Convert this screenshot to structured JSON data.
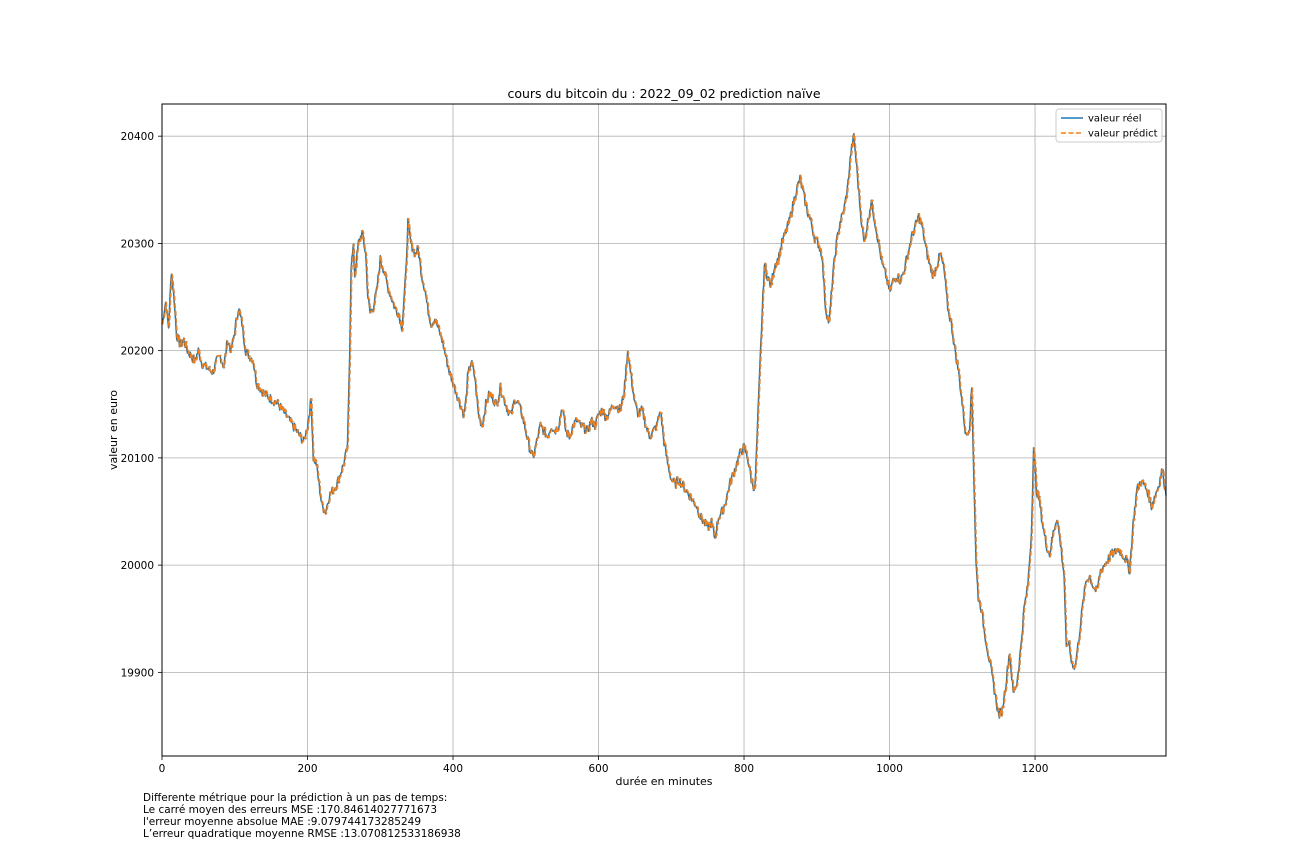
{
  "chart_data": {
    "type": "line",
    "title": "cours du bitcoin du : 2022_09_02 prediction naïve",
    "xlabel": "durée en minutes",
    "ylabel": "valeur en euro",
    "xlim": [
      0,
      1380
    ],
    "ylim": [
      19822,
      20430
    ],
    "x_ticks": [
      0,
      200,
      400,
      600,
      800,
      1000,
      1200
    ],
    "y_ticks": [
      19900,
      20000,
      20100,
      20200,
      20300,
      20400
    ],
    "grid": true,
    "legend_position": "top-right",
    "colors": {
      "real": "#1f77b4",
      "pred": "#ff7f0e"
    },
    "series": [
      {
        "name": "valeur réel",
        "style": "solid",
        "points": [
          [
            0,
            20225
          ],
          [
            5,
            20245
          ],
          [
            9,
            20222
          ],
          [
            13,
            20275
          ],
          [
            17,
            20245
          ],
          [
            20,
            20215
          ],
          [
            25,
            20205
          ],
          [
            30,
            20210
          ],
          [
            35,
            20200
          ],
          [
            40,
            20195
          ],
          [
            45,
            20190
          ],
          [
            50,
            20200
          ],
          [
            55,
            20188
          ],
          [
            60,
            20185
          ],
          [
            65,
            20182
          ],
          [
            70,
            20180
          ],
          [
            75,
            20190
          ],
          [
            80,
            20195
          ],
          [
            85,
            20185
          ],
          [
            90,
            20210
          ],
          [
            95,
            20200
          ],
          [
            100,
            20218
          ],
          [
            105,
            20240
          ],
          [
            110,
            20225
          ],
          [
            115,
            20200
          ],
          [
            120,
            20195
          ],
          [
            125,
            20192
          ],
          [
            130,
            20170
          ],
          [
            135,
            20165
          ],
          [
            140,
            20160
          ],
          [
            150,
            20155
          ],
          [
            160,
            20150
          ],
          [
            170,
            20140
          ],
          [
            180,
            20130
          ],
          [
            190,
            20120
          ],
          [
            195,
            20115
          ],
          [
            200,
            20130
          ],
          [
            205,
            20155
          ],
          [
            208,
            20100
          ],
          [
            212,
            20095
          ],
          [
            215,
            20080
          ],
          [
            220,
            20055
          ],
          [
            225,
            20050
          ],
          [
            230,
            20065
          ],
          [
            240,
            20075
          ],
          [
            245,
            20085
          ],
          [
            250,
            20095
          ],
          [
            255,
            20110
          ],
          [
            258,
            20200
          ],
          [
            260,
            20280
          ],
          [
            263,
            20295
          ],
          [
            265,
            20270
          ],
          [
            270,
            20300
          ],
          [
            275,
            20310
          ],
          [
            280,
            20290
          ],
          [
            283,
            20250
          ],
          [
            286,
            20235
          ],
          [
            290,
            20240
          ],
          [
            295,
            20255
          ],
          [
            300,
            20285
          ],
          [
            305,
            20275
          ],
          [
            310,
            20260
          ],
          [
            315,
            20250
          ],
          [
            320,
            20240
          ],
          [
            325,
            20235
          ],
          [
            330,
            20222
          ],
          [
            335,
            20270
          ],
          [
            338,
            20320
          ],
          [
            342,
            20300
          ],
          [
            348,
            20290
          ],
          [
            352,
            20295
          ],
          [
            357,
            20270
          ],
          [
            362,
            20255
          ],
          [
            365,
            20240
          ],
          [
            370,
            20225
          ],
          [
            375,
            20230
          ],
          [
            380,
            20220
          ],
          [
            385,
            20210
          ],
          [
            390,
            20195
          ],
          [
            395,
            20180
          ],
          [
            400,
            20170
          ],
          [
            405,
            20160
          ],
          [
            410,
            20150
          ],
          [
            415,
            20140
          ],
          [
            418,
            20155
          ],
          [
            420,
            20175
          ],
          [
            425,
            20190
          ],
          [
            430,
            20175
          ],
          [
            435,
            20140
          ],
          [
            440,
            20130
          ],
          [
            445,
            20150
          ],
          [
            450,
            20160
          ],
          [
            455,
            20155
          ],
          [
            460,
            20150
          ],
          [
            465,
            20165
          ],
          [
            470,
            20155
          ],
          [
            475,
            20145
          ],
          [
            480,
            20140
          ],
          [
            485,
            20155
          ],
          [
            490,
            20150
          ],
          [
            495,
            20140
          ],
          [
            500,
            20125
          ],
          [
            505,
            20110
          ],
          [
            510,
            20100
          ],
          [
            515,
            20115
          ],
          [
            520,
            20130
          ],
          [
            525,
            20125
          ],
          [
            530,
            20120
          ],
          [
            535,
            20130
          ],
          [
            540,
            20125
          ],
          [
            545,
            20130
          ],
          [
            550,
            20148
          ],
          [
            555,
            20125
          ],
          [
            560,
            20120
          ],
          [
            565,
            20130
          ],
          [
            570,
            20135
          ],
          [
            575,
            20130
          ],
          [
            580,
            20128
          ],
          [
            585,
            20125
          ],
          [
            590,
            20135
          ],
          [
            595,
            20130
          ],
          [
            600,
            20140
          ],
          [
            605,
            20145
          ],
          [
            610,
            20138
          ],
          [
            615,
            20142
          ],
          [
            620,
            20150
          ],
          [
            625,
            20148
          ],
          [
            630,
            20145
          ],
          [
            635,
            20160
          ],
          [
            640,
            20200
          ],
          [
            643,
            20185
          ],
          [
            647,
            20165
          ],
          [
            650,
            20150
          ],
          [
            655,
            20140
          ],
          [
            660,
            20145
          ],
          [
            665,
            20130
          ],
          [
            670,
            20120
          ],
          [
            675,
            20125
          ],
          [
            680,
            20130
          ],
          [
            685,
            20145
          ],
          [
            690,
            20115
          ],
          [
            695,
            20095
          ],
          [
            700,
            20080
          ],
          [
            705,
            20075
          ],
          [
            710,
            20080
          ],
          [
            715,
            20075
          ],
          [
            720,
            20070
          ],
          [
            725,
            20065
          ],
          [
            730,
            20060
          ],
          [
            735,
            20055
          ],
          [
            740,
            20045
          ],
          [
            745,
            20040
          ],
          [
            750,
            20035
          ],
          [
            755,
            20040
          ],
          [
            760,
            20025
          ],
          [
            765,
            20045
          ],
          [
            770,
            20050
          ],
          [
            775,
            20060
          ],
          [
            780,
            20075
          ],
          [
            785,
            20085
          ],
          [
            790,
            20095
          ],
          [
            795,
            20105
          ],
          [
            800,
            20110
          ],
          [
            805,
            20100
          ],
          [
            810,
            20080
          ],
          [
            815,
            20070
          ],
          [
            818,
            20120
          ],
          [
            821,
            20170
          ],
          [
            824,
            20220
          ],
          [
            828,
            20280
          ],
          [
            832,
            20270
          ],
          [
            837,
            20260
          ],
          [
            842,
            20280
          ],
          [
            847,
            20285
          ],
          [
            852,
            20300
          ],
          [
            857,
            20310
          ],
          [
            862,
            20320
          ],
          [
            867,
            20335
          ],
          [
            872,
            20350
          ],
          [
            877,
            20360
          ],
          [
            882,
            20345
          ],
          [
            887,
            20330
          ],
          [
            892,
            20320
          ],
          [
            897,
            20305
          ],
          [
            902,
            20300
          ],
          [
            907,
            20290
          ],
          [
            912,
            20240
          ],
          [
            917,
            20225
          ],
          [
            922,
            20270
          ],
          [
            927,
            20300
          ],
          [
            932,
            20320
          ],
          [
            937,
            20330
          ],
          [
            942,
            20350
          ],
          [
            947,
            20385
          ],
          [
            951,
            20400
          ],
          [
            955,
            20370
          ],
          [
            960,
            20330
          ],
          [
            965,
            20300
          ],
          [
            970,
            20320
          ],
          [
            975,
            20340
          ],
          [
            980,
            20320
          ],
          [
            985,
            20300
          ],
          [
            990,
            20280
          ],
          [
            995,
            20270
          ],
          [
            1000,
            20255
          ],
          [
            1005,
            20265
          ],
          [
            1010,
            20270
          ],
          [
            1015,
            20265
          ],
          [
            1020,
            20275
          ],
          [
            1025,
            20290
          ],
          [
            1030,
            20305
          ],
          [
            1035,
            20315
          ],
          [
            1040,
            20325
          ],
          [
            1045,
            20315
          ],
          [
            1050,
            20295
          ],
          [
            1055,
            20280
          ],
          [
            1060,
            20270
          ],
          [
            1065,
            20280
          ],
          [
            1070,
            20290
          ],
          [
            1075,
            20275
          ],
          [
            1080,
            20240
          ],
          [
            1085,
            20225
          ],
          [
            1090,
            20200
          ],
          [
            1095,
            20180
          ],
          [
            1100,
            20150
          ],
          [
            1105,
            20120
          ],
          [
            1110,
            20130
          ],
          [
            1113,
            20165
          ],
          [
            1116,
            20080
          ],
          [
            1119,
            20000
          ],
          [
            1122,
            19970
          ],
          [
            1126,
            19960
          ],
          [
            1130,
            19940
          ],
          [
            1135,
            19920
          ],
          [
            1140,
            19900
          ],
          [
            1145,
            19880
          ],
          [
            1150,
            19860
          ],
          [
            1155,
            19865
          ],
          [
            1160,
            19890
          ],
          [
            1165,
            19920
          ],
          [
            1170,
            19880
          ],
          [
            1175,
            19890
          ],
          [
            1180,
            19920
          ],
          [
            1185,
            19960
          ],
          [
            1190,
            19980
          ],
          [
            1195,
            20030
          ],
          [
            1198,
            20110
          ],
          [
            1202,
            20070
          ],
          [
            1206,
            20060
          ],
          [
            1210,
            20040
          ],
          [
            1215,
            20020
          ],
          [
            1220,
            20010
          ],
          [
            1225,
            20030
          ],
          [
            1230,
            20045
          ],
          [
            1235,
            20020
          ],
          [
            1240,
            19990
          ],
          [
            1243,
            19920
          ],
          [
            1246,
            19930
          ],
          [
            1250,
            19910
          ],
          [
            1255,
            19905
          ],
          [
            1260,
            19930
          ],
          [
            1265,
            19960
          ],
          [
            1270,
            19985
          ],
          [
            1275,
            19990
          ],
          [
            1280,
            19980
          ],
          [
            1285,
            19975
          ],
          [
            1290,
            19995
          ],
          [
            1295,
            20000
          ],
          [
            1300,
            20005
          ],
          [
            1305,
            20010
          ],
          [
            1310,
            20012
          ],
          [
            1315,
            20015
          ],
          [
            1320,
            20010
          ],
          [
            1325,
            20005
          ],
          [
            1330,
            19995
          ],
          [
            1335,
            20040
          ],
          [
            1340,
            20070
          ],
          [
            1345,
            20078
          ],
          [
            1350,
            20075
          ],
          [
            1355,
            20068
          ],
          [
            1360,
            20055
          ],
          [
            1365,
            20065
          ],
          [
            1370,
            20075
          ],
          [
            1375,
            20090
          ],
          [
            1380,
            20065
          ]
        ]
      },
      {
        "name": "valeur prédict",
        "style": "dashed",
        "lag": 1
      }
    ]
  },
  "legend": {
    "items": [
      "valeur réel",
      "valeur prédict"
    ]
  },
  "metrics": {
    "heading": "Differente métrique pour la prédiction à un pas de temps:",
    "mse": "Le carré moyen des erreurs MSE :170.84614027771673",
    "mae": "l'erreur moyenne absolue MAE :9.079744173285249",
    "rmse": "L’erreur quadratique moyenne RMSE :13.070812533186938"
  }
}
